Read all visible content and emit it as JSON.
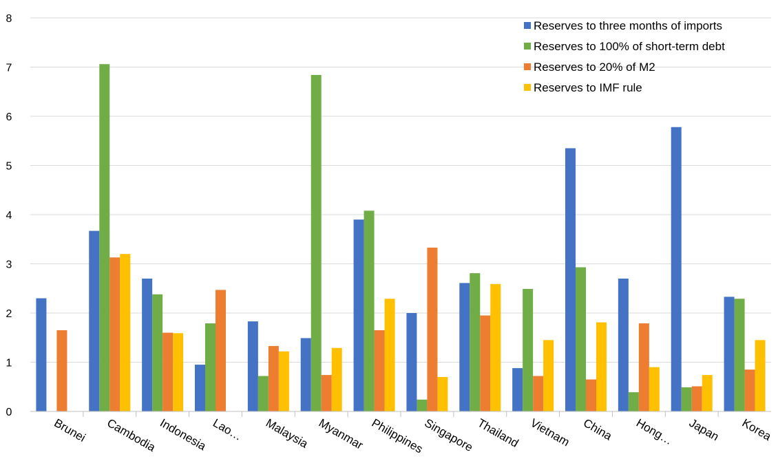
{
  "chart_data": {
    "type": "bar",
    "categories": [
      "Brunei",
      "Cambodia",
      "Indonesia",
      "Lao…",
      "Malaysia",
      "Myanmar",
      "Philippines",
      "Singapore",
      "Thailand",
      "Vietnam",
      "China",
      "Hong…",
      "Japan",
      "Korea"
    ],
    "series": [
      {
        "name": "Reserves to three months of imports",
        "color": "#4472C4",
        "values": [
          2.3,
          3.67,
          2.7,
          0.95,
          1.83,
          1.49,
          3.9,
          2.0,
          2.61,
          0.88,
          5.35,
          2.7,
          5.78,
          2.33
        ]
      },
      {
        "name": "Reserves to 100% of short-term debt",
        "color": "#70AD47",
        "values": [
          null,
          7.06,
          2.38,
          1.79,
          0.72,
          6.84,
          4.08,
          0.24,
          2.81,
          2.49,
          2.93,
          0.39,
          0.49,
          2.29
        ]
      },
      {
        "name": "Reserves to 20% of M2",
        "color": "#ED7D31",
        "values": [
          1.65,
          3.13,
          1.6,
          2.47,
          1.33,
          0.74,
          1.65,
          3.33,
          1.95,
          0.72,
          0.65,
          1.79,
          0.51,
          0.85
        ]
      },
      {
        "name": "Reserves to IMF rule",
        "color": "#FFC000",
        "values": [
          null,
          3.2,
          1.59,
          null,
          1.22,
          1.29,
          2.29,
          0.7,
          2.59,
          1.45,
          1.81,
          0.9,
          0.74,
          1.45
        ]
      }
    ],
    "ylim": [
      0,
      8
    ],
    "yticks": [
      0,
      1,
      2,
      3,
      4,
      5,
      6,
      7,
      8
    ],
    "grid": true,
    "gridline_color": "#D9D9D9",
    "legend_position": "top-right"
  }
}
